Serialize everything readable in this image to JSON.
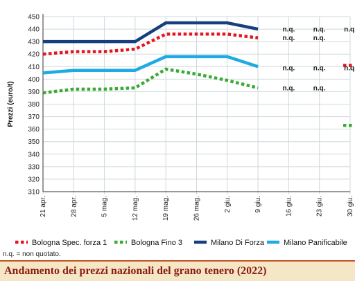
{
  "chart_data": {
    "type": "line",
    "title": "Andamento dei prezzi nazionali del grano tenero (2022)",
    "ylabel": "Prezzi (euro/t)",
    "xlabel": "",
    "ylim": [
      310,
      450
    ],
    "yticks": [
      310,
      320,
      330,
      340,
      350,
      360,
      370,
      380,
      390,
      400,
      410,
      420,
      430,
      440,
      450
    ],
    "categories": [
      "21 apr.",
      "28 apr.",
      "5 mag.",
      "12 mag.",
      "19 mag.",
      "26 mag.",
      "2 giu.",
      "9 giu.",
      "16 giu.",
      "23 giu.",
      "30 giu."
    ],
    "grid": true,
    "legend_position": "bottom",
    "series": [
      {
        "name": "Bologna Spec. forza 1",
        "color": "#e3161e",
        "style": "dotted",
        "values": [
          420,
          422,
          422,
          424,
          436,
          436,
          436,
          433,
          null,
          null,
          411
        ]
      },
      {
        "name": "Bologna Fino 3",
        "color": "#3aaa35",
        "style": "dotted",
        "values": [
          389,
          392,
          392,
          393,
          408,
          404,
          399,
          393,
          null,
          null,
          363
        ]
      },
      {
        "name": "Milano Di Forza",
        "color": "#163f7e",
        "style": "solid",
        "values": [
          430,
          430,
          430,
          430,
          445,
          445,
          445,
          440,
          null,
          null,
          null
        ]
      },
      {
        "name": "Milano Panificabile",
        "color": "#1eaae2",
        "style": "solid",
        "values": [
          405,
          407,
          407,
          407,
          418,
          418,
          418,
          410,
          null,
          null,
          null
        ]
      }
    ],
    "annotations": [
      {
        "text": "n.q.",
        "category": "16 giu.",
        "y": 440
      },
      {
        "text": "n.q.",
        "category": "23 giu.",
        "y": 440
      },
      {
        "text": "n.q.",
        "category": "30 giu.",
        "y": 440
      },
      {
        "text": "n.q.",
        "category": "16 giu.",
        "y": 433
      },
      {
        "text": "n.q.",
        "category": "23 giu.",
        "y": 433
      },
      {
        "text": "n.q.",
        "category": "16 giu.",
        "y": 409
      },
      {
        "text": "n.q.",
        "category": "23 giu.",
        "y": 409
      },
      {
        "text": "n.q.",
        "category": "30 giu.",
        "y": 409
      },
      {
        "text": "n.q.",
        "category": "16 giu.",
        "y": 393
      },
      {
        "text": "n.q.",
        "category": "23 giu.",
        "y": 393
      }
    ],
    "footnote": "n.q. = non quotato."
  }
}
